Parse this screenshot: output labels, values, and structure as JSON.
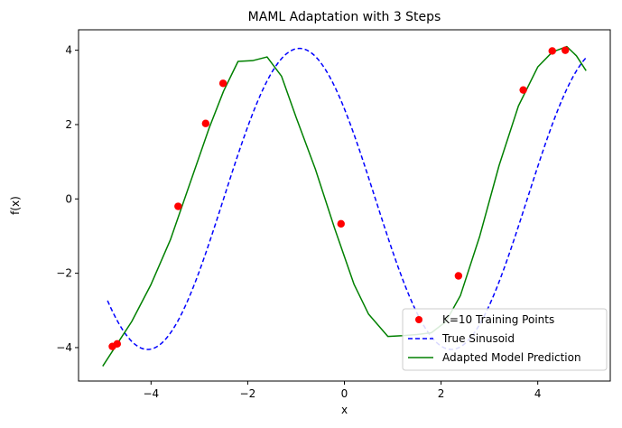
{
  "chart_data": {
    "type": "line",
    "title": "MAML Adaptation with 3 Steps",
    "xlabel": "x",
    "ylabel": "f(x)",
    "xlim": [
      -5.5,
      5.5
    ],
    "ylim": [
      -4.9,
      4.55
    ],
    "xticks": [
      -4,
      -2,
      0,
      2,
      4
    ],
    "yticks": [
      -4,
      -2,
      0,
      2,
      4
    ],
    "xtick_labels": [
      "−4",
      "−2",
      "0",
      "2",
      "4"
    ],
    "ytick_labels": [
      "−4",
      "−2",
      "0",
      "2",
      "4"
    ],
    "grid": false,
    "legend_position": "lower-right",
    "series": [
      {
        "name": "K=10 Training Points",
        "kind": "scatter",
        "color": "#ff0000",
        "x": [
          -4.8,
          -4.7,
          -3.44,
          -2.87,
          -2.51,
          -0.07,
          2.36,
          3.7,
          4.3,
          4.57
        ],
        "y": [
          -3.97,
          -3.9,
          -0.2,
          2.03,
          3.11,
          -0.67,
          -2.07,
          2.93,
          3.98,
          4.0
        ]
      },
      {
        "name": "True Sinusoid",
        "kind": "line",
        "style": "dashed",
        "color": "#0000ff",
        "amplitude": 4.05,
        "phase": 2.5,
        "x_range": [
          -4.9,
          5.0
        ]
      },
      {
        "name": "Adapted Model Prediction",
        "kind": "line",
        "style": "solid",
        "color": "#008000",
        "x": [
          -5.0,
          -4.7,
          -4.4,
          -4.0,
          -3.6,
          -3.2,
          -2.8,
          -2.5,
          -2.2,
          -1.9,
          -1.6,
          -1.3,
          -1.0,
          -0.6,
          -0.2,
          0.2,
          0.5,
          0.9,
          1.2,
          1.5,
          1.8,
          2.1,
          2.4,
          2.8,
          3.2,
          3.6,
          4.0,
          4.3,
          4.6,
          4.8,
          5.0
        ],
        "y": [
          -4.5,
          -3.9,
          -3.3,
          -2.3,
          -1.1,
          0.4,
          1.9,
          2.9,
          3.7,
          3.72,
          3.82,
          3.3,
          2.2,
          0.8,
          -0.8,
          -2.3,
          -3.1,
          -3.7,
          -3.68,
          -3.65,
          -3.6,
          -3.3,
          -2.6,
          -1.0,
          0.9,
          2.5,
          3.55,
          3.95,
          4.1,
          3.85,
          3.45
        ]
      }
    ]
  }
}
